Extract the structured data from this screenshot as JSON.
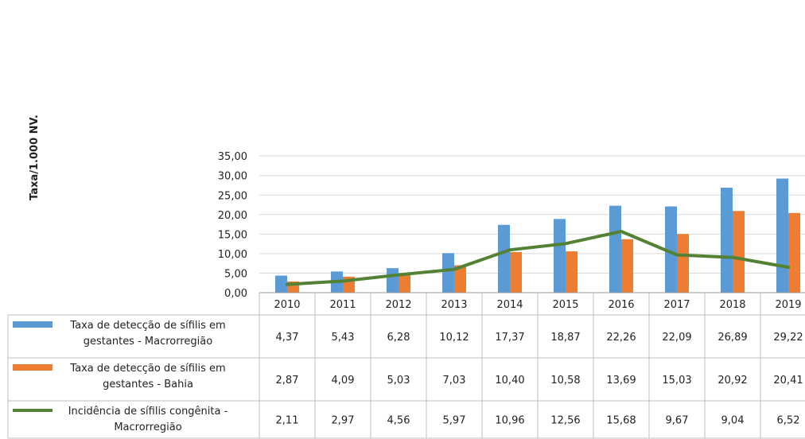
{
  "chart_data": {
    "type": "bar",
    "title": "",
    "ylabel": "Taxa/1.000 NV.",
    "xlabel": "",
    "ylim": [
      0,
      35
    ],
    "ytick_step": 5,
    "ytick_labels": [
      "0,00",
      "5,00",
      "10,00",
      "15,00",
      "20,00",
      "25,00",
      "30,00",
      "35,00"
    ],
    "grid": true,
    "legend_placement": "bottom data table",
    "categories": [
      "2010",
      "2011",
      "2012",
      "2013",
      "2014",
      "2015",
      "2016",
      "2017",
      "2018",
      "2019"
    ],
    "series": [
      {
        "name": "Taxa de detecção de sífilis em gestantes - Macrorregião",
        "name_lines": [
          "Taxa de detecção de sífilis em",
          "gestantes - Macrorregião"
        ],
        "kind": "bar",
        "color": "#5B9BD5",
        "values": [
          4.37,
          5.43,
          6.28,
          10.12,
          17.37,
          18.87,
          22.26,
          22.09,
          26.89,
          29.22
        ],
        "labels": [
          "4,37",
          "5,43",
          "6,28",
          "10,12",
          "17,37",
          "18,87",
          "22,26",
          "22,09",
          "26,89",
          "29,22"
        ]
      },
      {
        "name": "Taxa de detecção de sífilis em gestantes - Bahia",
        "name_lines": [
          "Taxa de detecção de sífilis em",
          "gestantes - Bahia"
        ],
        "kind": "bar",
        "color": "#ED7D31",
        "values": [
          2.87,
          4.09,
          5.03,
          7.03,
          10.4,
          10.58,
          13.69,
          15.03,
          20.92,
          20.41
        ],
        "labels": [
          "2,87",
          "4,09",
          "5,03",
          "7,03",
          "10,40",
          "10,58",
          "13,69",
          "15,03",
          "20,92",
          "20,41"
        ]
      },
      {
        "name": "Incidência de sífilis congênita - Macrorregião",
        "name_lines": [
          "Incidência de sífilis congênita -",
          "Macrorregião"
        ],
        "kind": "line",
        "color": "#548235",
        "values": [
          2.11,
          2.97,
          4.56,
          5.97,
          10.96,
          12.56,
          15.68,
          9.67,
          9.04,
          6.52
        ],
        "labels": [
          "2,11",
          "2,97",
          "4,56",
          "5,97",
          "10,96",
          "12,56",
          "15,68",
          "9,67",
          "9,04",
          "6,52"
        ]
      }
    ]
  }
}
